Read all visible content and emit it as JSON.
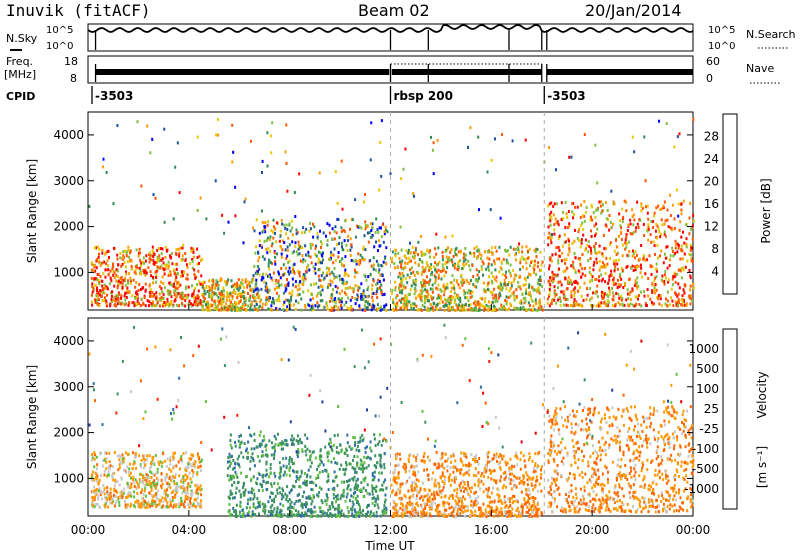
{
  "header": {
    "station": "Inuvik (fitACF)",
    "beam": "Beam 02",
    "date": "20/Jan/2014"
  },
  "top_panels": {
    "nsky_label": "N.Sky",
    "nsky_ticks": [
      "10^5",
      "10^0"
    ],
    "nsearch_label": "N.Search",
    "nsearch_ticks": [
      "10^5",
      "10^0"
    ],
    "freq_label_1": "Freq.",
    "freq_label_2": "[MHz]",
    "freq_ticks": [
      "18",
      "8"
    ],
    "nave_label": "Nave",
    "nave_ticks": [
      "60",
      "0"
    ],
    "cpid_label": "CPID",
    "cpid_segments": [
      {
        "label": "-3503",
        "start": 0.0,
        "end": 12.0
      },
      {
        "label": "rbsp 200",
        "start": 12.0,
        "end": 18.1
      },
      {
        "label": "-3503",
        "start": 18.1,
        "end": 24.0
      }
    ]
  },
  "axes": {
    "xlabel": "Time UT",
    "xticks": [
      "00:00",
      "04:00",
      "08:00",
      "12:00",
      "16:00",
      "20:00",
      "00:00"
    ],
    "ylabel": "Slant Range [km]",
    "yticks": [
      "1000",
      "2000",
      "3000",
      "4000"
    ]
  },
  "colorbars": {
    "power": {
      "label": "Power [dB]",
      "ticks": [
        "4",
        "8",
        "12",
        "16",
        "20",
        "24",
        "28"
      ],
      "colors": [
        "#0000ff",
        "#1c50a0",
        "#2e8b57",
        "#7fbf3f",
        "#e8c800",
        "#ff9900",
        "#ff5500",
        "#ff0000"
      ]
    },
    "velocity": {
      "label": "Velocity",
      "unit": "[m s⁻¹]",
      "ticks": [
        "1000",
        "500",
        "100",
        "25",
        "-25",
        "-100",
        "-500",
        "-1000"
      ],
      "colors": [
        "#1e3fa0",
        "#2e6fa8",
        "#3a9060",
        "#60c040",
        "#c8c8c8",
        "#ff9900",
        "#ff6600",
        "#ff2200",
        "#ee0000"
      ]
    }
  },
  "chart_data": {
    "type": "heatmap",
    "x_range_hours": [
      0,
      24
    ],
    "y_range_km": [
      180,
      4500
    ],
    "x_unit": "hours UT",
    "y_unit": "km",
    "power_scatter_regions": [
      {
        "t_start": 0.1,
        "t_end": 4.5,
        "r_low": 300,
        "r_high": 1600,
        "dominant": "red-orange"
      },
      {
        "t_start": 4.5,
        "t_end": 6.5,
        "r_low": 200,
        "r_high": 900,
        "dominant": "orange-green"
      },
      {
        "t_start": 6.5,
        "t_end": 11.8,
        "r_low": 200,
        "r_high": 2200,
        "dominant": "mixed"
      },
      {
        "t_start": 12.0,
        "t_end": 18.0,
        "r_low": 200,
        "r_high": 1600,
        "dominant": "green-orange"
      },
      {
        "t_start": 18.2,
        "t_end": 24.0,
        "r_low": 300,
        "r_high": 2600,
        "dominant": "red-orange"
      }
    ],
    "velocity_scatter_regions": [
      {
        "t_start": 0.1,
        "t_end": 4.5,
        "r_low": 400,
        "r_high": 1600,
        "dominant": "orange-grey"
      },
      {
        "t_start": 5.5,
        "t_end": 11.8,
        "r_low": 200,
        "r_high": 2000,
        "dominant": "green"
      },
      {
        "t_start": 12.0,
        "t_end": 18.0,
        "r_low": 200,
        "r_high": 1600,
        "dominant": "orange"
      },
      {
        "t_start": 18.2,
        "t_end": 24.0,
        "r_low": 300,
        "r_high": 2600,
        "dominant": "orange"
      }
    ],
    "data_gaps_hours": [
      12.0,
      18.1
    ]
  }
}
